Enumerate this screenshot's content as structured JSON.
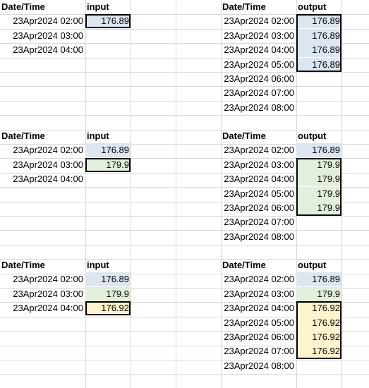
{
  "colors": {
    "blue_fill": "#dce6f1",
    "green_fill": "#e2efda",
    "orange_fill": "#fff2cc",
    "gridline": "#d9d9d9"
  },
  "blocks": [
    {
      "input_header": [
        "Date/Time",
        "input"
      ],
      "input_rows": [
        {
          "dt": "23Apr2024 02:00",
          "val": "176.89",
          "fill": "blue"
        },
        {
          "dt": "23Apr2024 03:00",
          "val": "",
          "fill": ""
        },
        {
          "dt": "23Apr2024 04:00",
          "val": "",
          "fill": ""
        }
      ],
      "output_header": [
        "Date/Time",
        "output"
      ],
      "output_rows": [
        {
          "dt": "23Apr2024 02:00",
          "val": "176.89",
          "fill": "blue"
        },
        {
          "dt": "23Apr2024 03:00",
          "val": "176.89",
          "fill": "blue"
        },
        {
          "dt": "23Apr2024 04:00",
          "val": "176.89",
          "fill": "blue"
        },
        {
          "dt": "23Apr2024 05:00",
          "val": "176.89",
          "fill": "blue"
        },
        {
          "dt": "23Apr2024 06:00",
          "val": "",
          "fill": ""
        },
        {
          "dt": "23Apr2024 07:00",
          "val": "",
          "fill": ""
        },
        {
          "dt": "23Apr2024 08:00",
          "val": "",
          "fill": ""
        }
      ]
    },
    {
      "input_header": [
        "Date/Time",
        "input"
      ],
      "input_rows": [
        {
          "dt": "23Apr2024 02:00",
          "val": "176.89",
          "fill": "blue"
        },
        {
          "dt": "23Apr2024 03:00",
          "val": "179.9",
          "fill": "green"
        },
        {
          "dt": "23Apr2024 04:00",
          "val": "",
          "fill": ""
        }
      ],
      "output_header": [
        "Date/Time",
        "output"
      ],
      "output_rows": [
        {
          "dt": "23Apr2024 02:00",
          "val": "176.89",
          "fill": "blue"
        },
        {
          "dt": "23Apr2024 03:00",
          "val": "179.9",
          "fill": "green"
        },
        {
          "dt": "23Apr2024 04:00",
          "val": "179.9",
          "fill": "green"
        },
        {
          "dt": "23Apr2024 05:00",
          "val": "179.9",
          "fill": "green"
        },
        {
          "dt": "23Apr2024 06:00",
          "val": "179.9",
          "fill": "green"
        },
        {
          "dt": "23Apr2024 07:00",
          "val": "",
          "fill": ""
        },
        {
          "dt": "23Apr2024 08:00",
          "val": "",
          "fill": ""
        }
      ]
    },
    {
      "input_header": [
        "Date/Time",
        "input"
      ],
      "input_rows": [
        {
          "dt": "23Apr2024 02:00",
          "val": "176.89",
          "fill": "blue"
        },
        {
          "dt": "23Apr2024 03:00",
          "val": "179.9",
          "fill": "green"
        },
        {
          "dt": "23Apr2024 04:00",
          "val": "176.92",
          "fill": "orange"
        }
      ],
      "output_header": [
        "Date/Time",
        "output"
      ],
      "output_rows": [
        {
          "dt": "23Apr2024 02:00",
          "val": "176.89",
          "fill": "blue"
        },
        {
          "dt": "23Apr2024 03:00",
          "val": "179.9",
          "fill": "green"
        },
        {
          "dt": "23Apr2024 04:00",
          "val": "176.92",
          "fill": "orange"
        },
        {
          "dt": "23Apr2024 05:00",
          "val": "176.92",
          "fill": "orange"
        },
        {
          "dt": "23Apr2024 06:00",
          "val": "176.92",
          "fill": "orange"
        },
        {
          "dt": "23Apr2024 07:00",
          "val": "176.92",
          "fill": "orange"
        },
        {
          "dt": "23Apr2024 08:00",
          "val": "",
          "fill": ""
        }
      ]
    }
  ]
}
